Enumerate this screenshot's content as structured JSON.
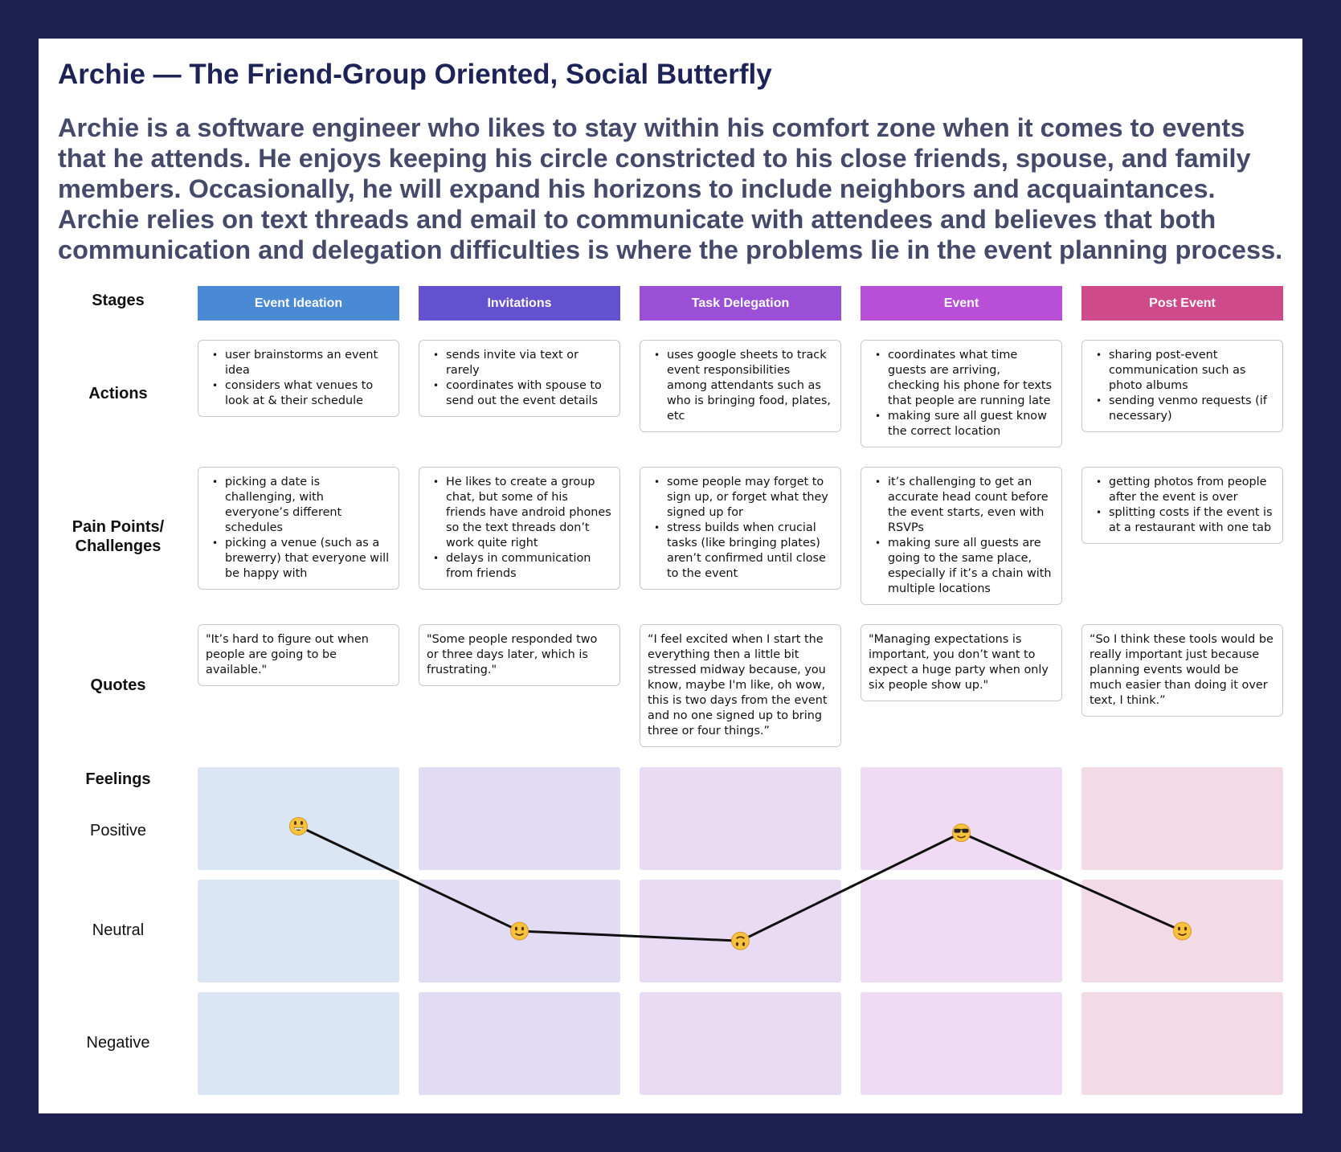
{
  "title": "Archie — The Friend-Group Oriented, Social Butterfly",
  "description": "Archie is a software engineer who likes to stay within his comfort zone when it comes to events that he attends. He enjoys keeping his circle constricted to his close friends, spouse, and family members. Occasionally, he will expand his horizons to include neighbors and acquaintances. Archie relies on text threads and email to communicate with attendees and believes that both communication and delegation difficulties is where the problems lie in the event planning process.",
  "row_labels": {
    "stages": "Stages",
    "actions": "Actions",
    "pain_line1": "Pain Points/",
    "pain_line2": "Challenges",
    "quotes": "Quotes",
    "feelings": "Feelings",
    "positive": "Positive",
    "neutral": "Neutral",
    "negative": "Negative"
  },
  "stages": [
    {
      "name": "Event Ideation",
      "color": "#4a8ad4",
      "feel_color": "#dbe6f4",
      "feeling": "positive",
      "feeling_level": 0.82,
      "emoji": "grinning-face",
      "actions": [
        "user brainstorms an event idea",
        "considers what venues to look at & their schedule"
      ],
      "pains": [
        "picking a date is challenging, with everyone’s different schedules",
        "picking a venue (such as a brewerry) that everyone will be happy with"
      ],
      "quote": "\"It’s hard to figure out when people are going to be available.\""
    },
    {
      "name": "Invitations",
      "color": "#6451cf",
      "feel_color": "#e1dbf3",
      "feeling": "neutral",
      "feeling_level": 0.5,
      "emoji": "slightly-smiling-face",
      "actions": [
        "sends invite via text or rarely",
        "coordinates with spouse to send out the event details"
      ],
      "pains": [
        "He likes to create a group chat, but some of his friends have android phones so the text threads don’t work quite right",
        "delays in communication from friends"
      ],
      "quote": "\"Some people responded two or three days later, which is frustrating.\""
    },
    {
      "name": "Task Delegation",
      "color": "#9a4fd6",
      "feel_color": "#e8dbf3",
      "feeling": "neutral",
      "feeling_level": 0.47,
      "emoji": "upside-down-face",
      "actions": [
        "uses google sheets to track event responsibilities among attendants such as who is bringing food, plates, etc"
      ],
      "pains": [
        "some people may forget to sign up, or forget what they signed up for",
        "stress builds when crucial tasks (like bringing plates) aren’t confirmed until close to the event"
      ],
      "quote": "“I feel excited when I start the everything then a little bit stressed midway because, you know, maybe I'm like, oh wow, this is two days from the event and no one signed up to bring three or four things.”"
    },
    {
      "name": "Event",
      "color": "#b94fd6",
      "feel_color": "#efdbf3",
      "feeling": "positive",
      "feeling_level": 0.8,
      "emoji": "smiling-face-with-sunglasses",
      "actions": [
        "coordinates what time guests are arriving, checking his phone for texts that people are running late",
        "making sure all guest know the correct location"
      ],
      "pains": [
        "it’s challenging to get an accurate head count before the event starts, even with RSVPs",
        "making sure all guests are going to the same place, especially if it’s a chain with multiple locations"
      ],
      "quote": "\"Managing expectations is important, you don’t want to expect a huge party when only six people show up.\""
    },
    {
      "name": "Post Event",
      "color": "#cf4a8a",
      "feel_color": "#f3dbe6",
      "feeling": "neutral",
      "feeling_level": 0.5,
      "emoji": "slightly-smiling-face",
      "actions": [
        "sharing post-event communication such as photo albums",
        "sending venmo requests (if necessary)"
      ],
      "pains": [
        "getting photos from people after the event is over",
        "splitting costs if the event is at a restaurant with one tab"
      ],
      "quote": "“So I think these tools would be really important just because planning events would be much easier than doing it over text, I think.”"
    }
  ]
}
